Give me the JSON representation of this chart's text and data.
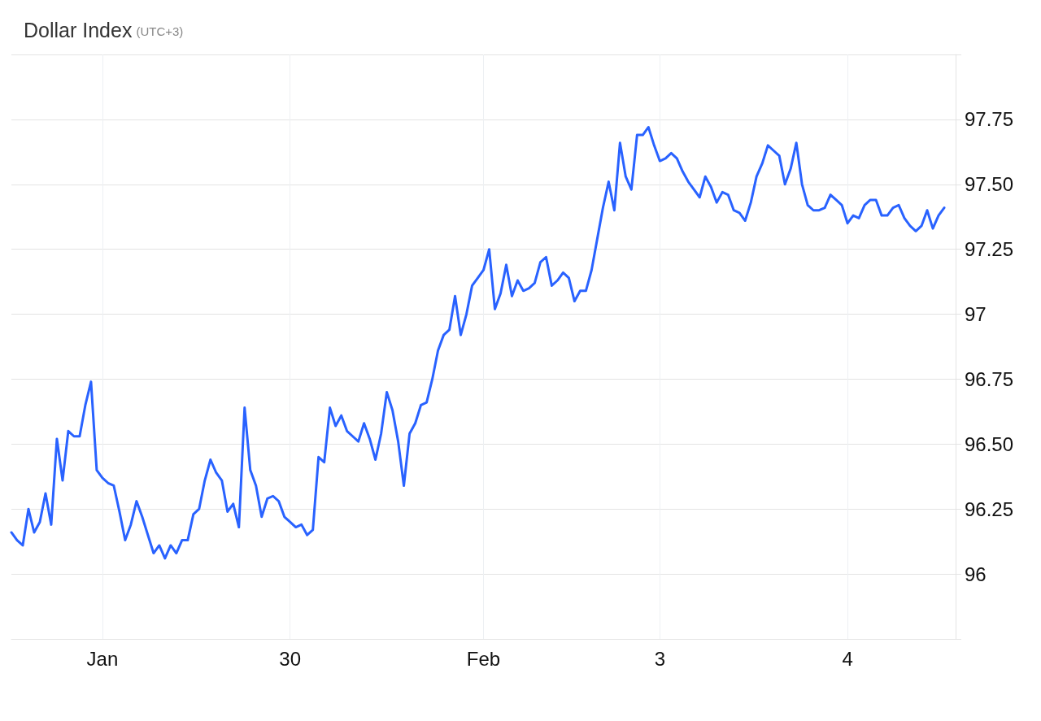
{
  "chart_data": {
    "type": "line",
    "title": "Dollar Index",
    "subtitle": "(UTC+3)",
    "categories": [
      null,
      null,
      null,
      null,
      null,
      null,
      null,
      null,
      null,
      null,
      null,
      null,
      null,
      null,
      null,
      null,
      "Jan",
      null,
      null,
      null,
      null,
      null,
      null,
      null,
      null,
      null,
      null,
      null,
      null,
      null,
      null,
      null,
      null,
      null,
      null,
      null,
      null,
      null,
      null,
      null,
      null,
      null,
      null,
      null,
      null,
      null,
      null,
      null,
      null,
      "30",
      null,
      null,
      null,
      null,
      null,
      null,
      null,
      null,
      null,
      null,
      null,
      null,
      null,
      null,
      null,
      null,
      null,
      null,
      null,
      null,
      null,
      null,
      null,
      null,
      null,
      null,
      null,
      null,
      null,
      null,
      null,
      null,
      null,
      "Feb",
      null,
      null,
      null,
      null,
      null,
      null,
      null,
      null,
      null,
      null,
      null,
      null,
      null,
      null,
      null,
      null,
      null,
      null,
      null,
      null,
      null,
      null,
      null,
      null,
      null,
      null,
      null,
      null,
      null,
      null,
      "3",
      null,
      null,
      null,
      null,
      null,
      null,
      null,
      null,
      null,
      null,
      null,
      null,
      null,
      null,
      null,
      null,
      null,
      null,
      null,
      null,
      null,
      null,
      null,
      null,
      null,
      null,
      null,
      null,
      null,
      null,
      null,
      null,
      "4",
      null,
      null,
      null,
      null,
      null,
      null,
      null,
      null,
      null,
      null,
      null,
      null,
      null,
      null,
      null,
      null,
      null,
      null,
      null
    ],
    "color": "#2962ff",
    "values": [
      96.16,
      96.13,
      96.11,
      96.25,
      96.16,
      96.2,
      96.31,
      96.19,
      96.52,
      96.36,
      96.55,
      96.53,
      96.53,
      96.65,
      96.74,
      96.4,
      96.37,
      96.35,
      96.34,
      96.24,
      96.13,
      96.19,
      96.28,
      96.22,
      96.15,
      96.08,
      96.11,
      96.06,
      96.11,
      96.08,
      96.13,
      96.13,
      96.23,
      96.25,
      96.36,
      96.44,
      96.39,
      96.36,
      96.24,
      96.27,
      96.18,
      96.64,
      96.4,
      96.34,
      96.22,
      96.29,
      96.3,
      96.28,
      96.22,
      96.2,
      96.18,
      96.19,
      96.15,
      96.17,
      96.45,
      96.43,
      96.64,
      96.57,
      96.61,
      96.55,
      96.53,
      96.51,
      96.58,
      96.52,
      96.44,
      96.54,
      96.7,
      96.63,
      96.51,
      96.34,
      96.54,
      96.58,
      96.65,
      96.66,
      96.75,
      96.86,
      96.92,
      96.94,
      97.07,
      96.92,
      97.0,
      97.11,
      97.14,
      97.17,
      97.25,
      97.02,
      97.08,
      97.19,
      97.07,
      97.13,
      97.09,
      97.1,
      97.12,
      97.2,
      97.22,
      97.11,
      97.13,
      97.16,
      97.14,
      97.05,
      97.09,
      97.09,
      97.17,
      97.29,
      97.41,
      97.51,
      97.4,
      97.66,
      97.53,
      97.48,
      97.69,
      97.69,
      97.72,
      97.65,
      97.59,
      97.6,
      97.62,
      97.6,
      97.55,
      97.51,
      97.48,
      97.45,
      97.53,
      97.49,
      97.43,
      97.47,
      97.46,
      97.4,
      97.39,
      97.36,
      97.43,
      97.53,
      97.58,
      97.65,
      97.63,
      97.61,
      97.5,
      97.56,
      97.66,
      97.5,
      97.42,
      97.4,
      97.4,
      97.41,
      97.46,
      97.44,
      97.42,
      97.35,
      97.38,
      97.37,
      97.42,
      97.44,
      97.44,
      97.38,
      97.38,
      97.41,
      97.42,
      97.37,
      97.34,
      97.32,
      97.34,
      97.4,
      97.33,
      97.38,
      97.41,
      null,
      null
    ],
    "ylim": [
      95.75,
      98
    ],
    "yticks": [
      {
        "value": 95.75,
        "label": null
      },
      96,
      96.25,
      {
        "value": 96.5,
        "label": "96.50"
      },
      96.75,
      97,
      97.25,
      {
        "value": 97.5,
        "label": "97.50"
      },
      97.75,
      {
        "value": 98,
        "label": null
      }
    ],
    "grid": true,
    "marker": "none",
    "line_style": "solid"
  }
}
